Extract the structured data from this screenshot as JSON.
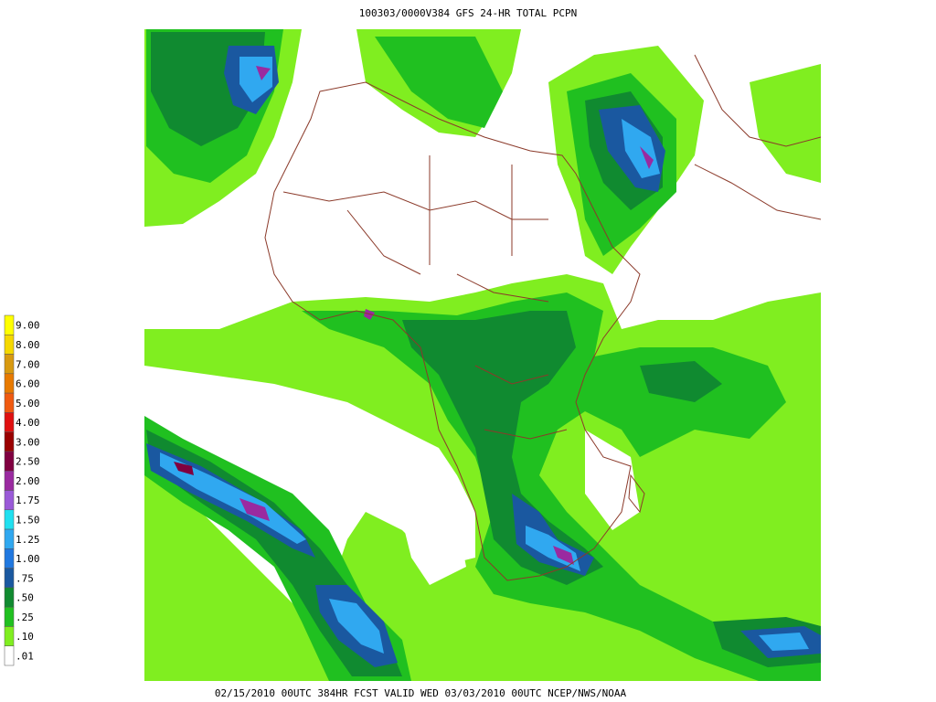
{
  "title": "100303/0000V384 GFS 24-HR TOTAL PCPN",
  "footer": "02/15/2010 00UTC 384HR FCST VALID WED 03/03/2010 00UTC  NCEP/NWS/NOAA",
  "legend": {
    "items": [
      {
        "label": "9.00",
        "color": "#ffff00"
      },
      {
        "label": "8.00",
        "color": "#f5d800"
      },
      {
        "label": "7.00",
        "color": "#d89a10"
      },
      {
        "label": "6.00",
        "color": "#e87a00"
      },
      {
        "label": "5.00",
        "color": "#f05a10"
      },
      {
        "label": "4.00",
        "color": "#e01010"
      },
      {
        "label": "3.00",
        "color": "#9a0000"
      },
      {
        "label": "2.50",
        "color": "#800040"
      },
      {
        "label": "2.00",
        "color": "#9a2aa0"
      },
      {
        "label": "1.75",
        "color": "#9a5ad8"
      },
      {
        "label": "1.50",
        "color": "#20e0f0"
      },
      {
        "label": "1.25",
        "color": "#30a8f0"
      },
      {
        "label": "1.00",
        "color": "#2078e0"
      },
      {
        "label": ".75",
        "color": "#1a58a0"
      },
      {
        "label": ".50",
        "color": "#108a30"
      },
      {
        "label": ".25",
        "color": "#20c020"
      },
      {
        "label": ".10",
        "color": "#80ee20"
      },
      {
        "label": ".01",
        "color": "#ffffff"
      }
    ]
  }
}
